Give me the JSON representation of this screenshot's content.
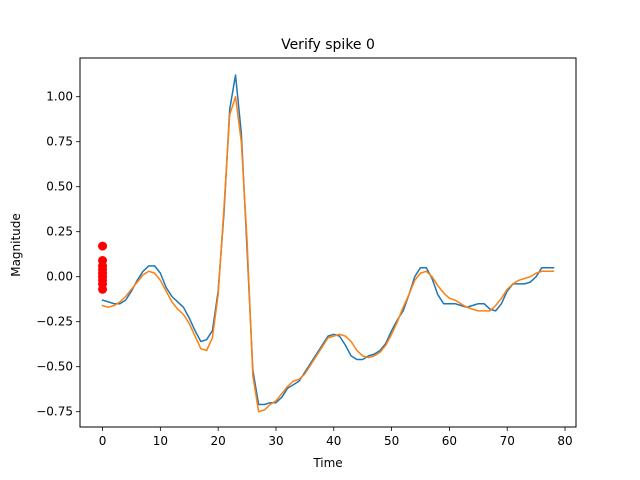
{
  "chart_data": {
    "type": "line",
    "title": "Verify spike 0",
    "xlabel": "Time",
    "ylabel": "Magnitude",
    "xlim": [
      -3.9,
      81.9
    ],
    "ylim": [
      -0.835,
      1.215
    ],
    "xticks": [
      0,
      10,
      20,
      30,
      40,
      50,
      60,
      70,
      80
    ],
    "yticks": [
      -0.75,
      -0.5,
      -0.25,
      0.0,
      0.25,
      0.5,
      0.75,
      1.0
    ],
    "ytick_labels": [
      "−0.75",
      "−0.50",
      "−0.25",
      "0.00",
      "0.25",
      "0.50",
      "0.75",
      "1.00"
    ],
    "grid": false,
    "legend": false,
    "series": [
      {
        "kind": "line",
        "color": "#1f77b4",
        "x": [
          0,
          1,
          2,
          3,
          4,
          5,
          6,
          7,
          8,
          9,
          10,
          11,
          12,
          13,
          14,
          15,
          16,
          17,
          18,
          19,
          20,
          21,
          22,
          23,
          24,
          25,
          26,
          27,
          28,
          29,
          30,
          31,
          32,
          33,
          34,
          35,
          36,
          37,
          38,
          39,
          40,
          41,
          42,
          43,
          44,
          45,
          46,
          47,
          48,
          49,
          50,
          51,
          52,
          53,
          54,
          55,
          56,
          57,
          58,
          59,
          60,
          61,
          62,
          63,
          64,
          65,
          66,
          67,
          68,
          69,
          70,
          71,
          72,
          73,
          74,
          75,
          76,
          77,
          78
        ],
        "y": [
          -0.13,
          -0.14,
          -0.15,
          -0.15,
          -0.13,
          -0.08,
          -0.02,
          0.03,
          0.06,
          0.06,
          0.02,
          -0.06,
          -0.11,
          -0.14,
          -0.17,
          -0.23,
          -0.3,
          -0.36,
          -0.35,
          -0.3,
          -0.08,
          0.35,
          0.93,
          1.12,
          0.8,
          0.15,
          -0.52,
          -0.71,
          -0.71,
          -0.7,
          -0.7,
          -0.67,
          -0.62,
          -0.6,
          -0.58,
          -0.53,
          -0.48,
          -0.43,
          -0.38,
          -0.33,
          -0.32,
          -0.33,
          -0.38,
          -0.44,
          -0.46,
          -0.46,
          -0.44,
          -0.43,
          -0.41,
          -0.37,
          -0.3,
          -0.24,
          -0.19,
          -0.1,
          0.0,
          0.05,
          0.05,
          -0.01,
          -0.1,
          -0.15,
          -0.15,
          -0.15,
          -0.16,
          -0.17,
          -0.16,
          -0.15,
          -0.15,
          -0.18,
          -0.19,
          -0.15,
          -0.08,
          -0.04,
          -0.04,
          -0.04,
          -0.03,
          0.0,
          0.05,
          0.05,
          0.05
        ]
      },
      {
        "kind": "line",
        "color": "#ff7f0e",
        "x": [
          0,
          1,
          2,
          3,
          4,
          5,
          6,
          7,
          8,
          9,
          10,
          11,
          12,
          13,
          14,
          15,
          16,
          17,
          18,
          19,
          20,
          21,
          22,
          23,
          24,
          25,
          26,
          27,
          28,
          29,
          30,
          31,
          32,
          33,
          34,
          35,
          36,
          37,
          38,
          39,
          40,
          41,
          42,
          43,
          44,
          45,
          46,
          47,
          48,
          49,
          50,
          51,
          52,
          53,
          54,
          55,
          56,
          57,
          58,
          59,
          60,
          61,
          62,
          63,
          64,
          65,
          66,
          67,
          68,
          69,
          70,
          71,
          72,
          73,
          74,
          75,
          76,
          77,
          78
        ],
        "y": [
          -0.16,
          -0.17,
          -0.16,
          -0.14,
          -0.11,
          -0.07,
          -0.03,
          0.01,
          0.03,
          0.02,
          -0.02,
          -0.08,
          -0.14,
          -0.18,
          -0.21,
          -0.26,
          -0.33,
          -0.4,
          -0.41,
          -0.34,
          -0.1,
          0.38,
          0.9,
          1.0,
          0.75,
          0.2,
          -0.55,
          -0.75,
          -0.74,
          -0.71,
          -0.69,
          -0.65,
          -0.61,
          -0.58,
          -0.57,
          -0.54,
          -0.49,
          -0.44,
          -0.39,
          -0.34,
          -0.33,
          -0.32,
          -0.33,
          -0.36,
          -0.41,
          -0.44,
          -0.45,
          -0.44,
          -0.42,
          -0.38,
          -0.32,
          -0.25,
          -0.17,
          -0.1,
          -0.02,
          0.02,
          0.03,
          0.0,
          -0.05,
          -0.09,
          -0.12,
          -0.13,
          -0.15,
          -0.17,
          -0.18,
          -0.19,
          -0.19,
          -0.19,
          -0.16,
          -0.12,
          -0.07,
          -0.04,
          -0.02,
          -0.01,
          0.0,
          0.02,
          0.03,
          0.03,
          0.03
        ]
      },
      {
        "kind": "scatter",
        "color": "#ff0000",
        "x": [
          0,
          0,
          0,
          0,
          0,
          0,
          0,
          0,
          0
        ],
        "y": [
          0.17,
          0.09,
          0.06,
          0.04,
          0.02,
          0.0,
          -0.02,
          -0.04,
          -0.07
        ]
      }
    ]
  }
}
